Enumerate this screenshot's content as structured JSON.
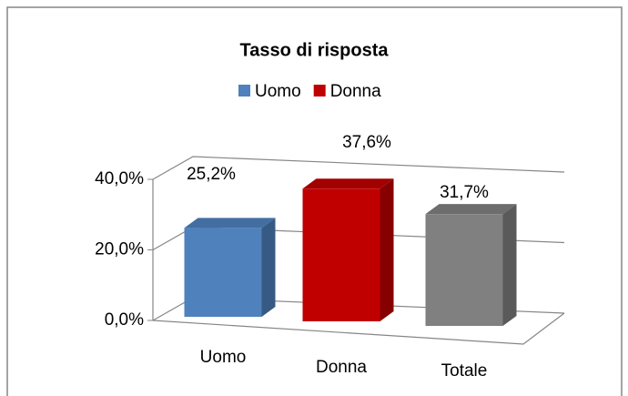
{
  "chart_data": {
    "type": "bar3d",
    "title": "Tasso di risposta",
    "categories": [
      "Uomo",
      "Donna",
      "Totale"
    ],
    "values": [
      25.2,
      37.6,
      31.7
    ],
    "value_labels": [
      "25,2%",
      "37,6%",
      "31,7%"
    ],
    "colors": [
      "#4f81bd",
      "#c00000",
      "#808080"
    ],
    "legend": [
      {
        "name": "Uomo",
        "color": "#4f81bd"
      },
      {
        "name": "Donna",
        "color": "#c00000"
      }
    ],
    "ylim": [
      0,
      40
    ],
    "yticks": [
      {
        "value": 0,
        "label": "0,0%"
      },
      {
        "value": 20,
        "label": "20,0%"
      },
      {
        "value": 40,
        "label": "40,0%"
      }
    ],
    "grid": true
  }
}
